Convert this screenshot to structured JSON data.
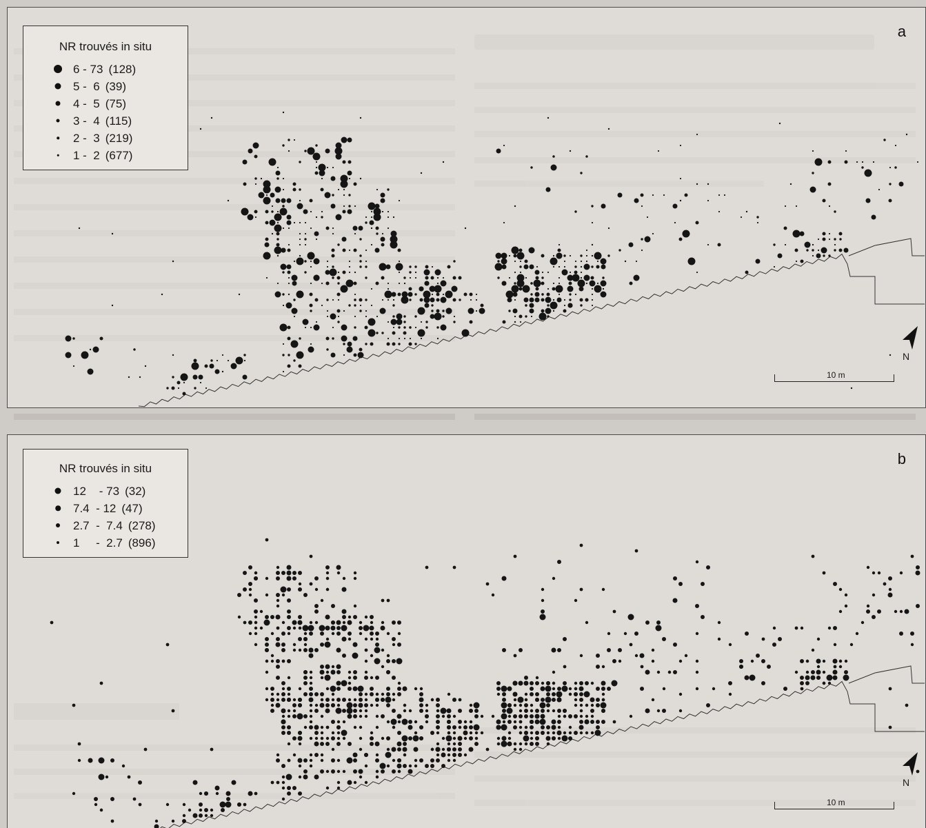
{
  "panels": [
    {
      "letter": "a",
      "legend_title": "NR trouvés in situ",
      "legend": [
        {
          "range": "6 - 73",
          "count": "(128)",
          "size": 12
        },
        {
          "range": "5 -  6",
          "count": "(39)",
          "size": 9
        },
        {
          "range": "4 -  5",
          "count": "(75)",
          "size": 7
        },
        {
          "range": "3 -  4",
          "count": "(115)",
          "size": 5
        },
        {
          "range": "2 -  3",
          "count": "(219)",
          "size": 3.5
        },
        {
          "range": "1 -  2",
          "count": "(677)",
          "size": 2.5
        }
      ],
      "scale_label": "10 m",
      "north_label": "N"
    },
    {
      "letter": "b",
      "legend_title": "NR trouvés in situ",
      "legend": [
        {
          "range": "12    - 73",
          "count": "(32)",
          "size": 9
        },
        {
          "range": "7.4  - 12",
          "count": "(47)",
          "size": 7.5
        },
        {
          "range": "2.7  -  7.4",
          "count": "(278)",
          "size": 6
        },
        {
          "range": "1     -  2.7",
          "count": "(896)",
          "size": 4
        }
      ],
      "scale_label": "10 m",
      "north_label": "N"
    }
  ],
  "colors": {
    "dots": "#151515",
    "background": "#cfcbc6",
    "wall": "#333333"
  }
}
